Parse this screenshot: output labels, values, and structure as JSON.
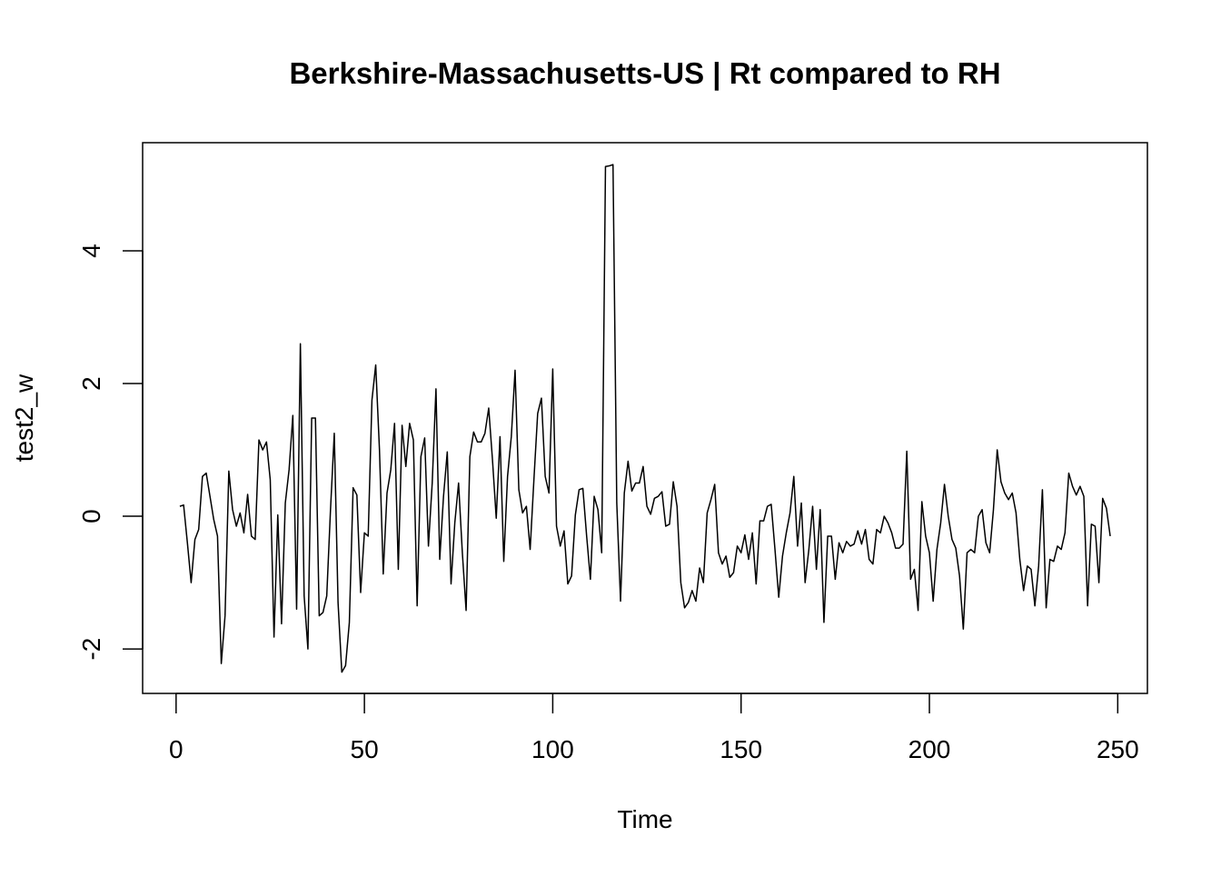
{
  "chart_data": {
    "type": "line",
    "title": "Berkshire-Massachusetts-US | Rt compared to RH",
    "x_label": "Time",
    "y_label": "test2_w",
    "x": [
      1,
      2,
      3,
      4,
      5,
      6,
      7,
      8,
      9,
      10,
      11,
      12,
      13,
      14,
      15,
      16,
      17,
      18,
      19,
      20,
      21,
      22,
      23,
      24,
      25,
      26,
      27,
      28,
      29,
      30,
      31,
      32,
      33,
      34,
      35,
      36,
      37,
      38,
      39,
      40,
      41,
      42,
      43,
      44,
      45,
      46,
      47,
      48,
      49,
      50,
      51,
      52,
      53,
      54,
      55,
      56,
      57,
      58,
      59,
      60,
      61,
      62,
      63,
      64,
      65,
      66,
      67,
      68,
      69,
      70,
      71,
      72,
      73,
      74,
      75,
      76,
      77,
      78,
      79,
      80,
      81,
      82,
      83,
      84,
      85,
      86,
      87,
      88,
      89,
      90,
      91,
      92,
      93,
      94,
      95,
      96,
      97,
      98,
      99,
      100,
      101,
      102,
      103,
      104,
      105,
      106,
      107,
      108,
      109,
      110,
      111,
      112,
      113,
      114,
      115,
      116,
      117,
      118,
      119,
      120,
      121,
      122,
      123,
      124,
      125,
      126,
      127,
      128,
      129,
      130,
      131,
      132,
      133,
      134,
      135,
      136,
      137,
      138,
      139,
      140,
      141,
      142,
      143,
      144,
      145,
      146,
      147,
      148,
      149,
      150,
      151,
      152,
      153,
      154,
      155,
      156,
      157,
      158,
      159,
      160,
      161,
      162,
      163,
      164,
      165,
      166,
      167,
      168,
      169,
      170,
      171,
      172,
      173,
      174,
      175,
      176,
      177,
      178,
      179,
      180,
      181,
      182,
      183,
      184,
      185,
      186,
      187,
      188,
      189,
      190,
      191,
      192,
      193,
      194,
      195,
      196,
      197,
      198,
      199,
      200,
      201,
      202,
      203,
      204,
      205,
      206,
      207,
      208,
      209,
      210,
      211,
      212,
      213,
      214,
      215,
      216,
      217,
      218,
      219,
      220,
      221,
      222,
      223,
      224,
      225,
      226,
      227,
      228,
      229,
      230,
      231,
      232,
      233,
      234,
      235,
      236,
      237,
      238,
      239,
      240,
      241,
      242,
      243,
      244,
      245,
      246,
      247,
      248
    ],
    "values": [
      0.15,
      0.17,
      -0.4,
      -1.0,
      -0.35,
      -0.2,
      0.6,
      0.65,
      0.3,
      -0.05,
      -0.3,
      -2.22,
      -1.5,
      0.68,
      0.1,
      -0.15,
      0.05,
      -0.25,
      0.33,
      -0.3,
      -0.35,
      1.15,
      1.0,
      1.12,
      0.55,
      -1.82,
      0.02,
      -1.62,
      0.2,
      0.7,
      1.52,
      -1.4,
      2.6,
      -1.2,
      -2.0,
      1.48,
      1.48,
      -1.5,
      -1.45,
      -1.2,
      0.1,
      1.25,
      -1.3,
      -2.35,
      -2.25,
      -1.6,
      0.43,
      0.32,
      -1.15,
      -0.25,
      -0.3,
      1.75,
      2.28,
      1.0,
      -0.87,
      0.35,
      0.7,
      1.4,
      -0.8,
      1.37,
      0.75,
      1.4,
      1.15,
      -1.35,
      0.9,
      1.18,
      -0.45,
      0.5,
      1.92,
      -0.65,
      0.3,
      0.97,
      -1.02,
      -0.1,
      0.5,
      -0.55,
      -1.42,
      0.9,
      1.27,
      1.12,
      1.12,
      1.25,
      1.63,
      0.85,
      -0.03,
      1.2,
      -0.68,
      0.6,
      1.2,
      2.2,
      0.4,
      0.05,
      0.15,
      -0.5,
      0.55,
      1.55,
      1.78,
      0.6,
      0.35,
      2.22,
      -0.15,
      -0.45,
      -0.22,
      -1.02,
      -0.9,
      0.02,
      0.4,
      0.42,
      -0.3,
      -0.95,
      0.3,
      0.1,
      -0.55,
      5.27,
      5.28,
      5.3,
      0.2,
      -1.28,
      0.35,
      0.83,
      0.38,
      0.5,
      0.5,
      0.75,
      0.15,
      0.03,
      0.27,
      0.3,
      0.37,
      -0.15,
      -0.12,
      0.52,
      0.15,
      -1.0,
      -1.38,
      -1.3,
      -1.12,
      -1.28,
      -0.78,
      -1.0,
      0.05,
      0.25,
      0.48,
      -0.55,
      -0.72,
      -0.6,
      -0.92,
      -0.85,
      -0.45,
      -0.55,
      -0.28,
      -0.65,
      -0.25,
      -1.02,
      -0.07,
      -0.07,
      0.15,
      0.18,
      -0.5,
      -1.22,
      -0.6,
      -0.25,
      0.05,
      0.6,
      -0.45,
      0.2,
      -1.0,
      -0.5,
      0.15,
      -0.8,
      0.1,
      -1.6,
      -0.3,
      -0.3,
      -0.95,
      -0.4,
      -0.55,
      -0.38,
      -0.45,
      -0.42,
      -0.22,
      -0.42,
      -0.2,
      -0.65,
      -0.72,
      -0.2,
      -0.25,
      0.0,
      -0.1,
      -0.25,
      -0.48,
      -0.48,
      -0.42,
      0.98,
      -0.95,
      -0.8,
      -1.42,
      0.22,
      -0.3,
      -0.55,
      -1.28,
      -0.5,
      -0.1,
      0.48,
      0.0,
      -0.35,
      -0.48,
      -0.9,
      -1.7,
      -0.55,
      -0.5,
      -0.55,
      0.0,
      0.1,
      -0.4,
      -0.55,
      0.1,
      1.0,
      0.52,
      0.35,
      0.25,
      0.35,
      0.05,
      -0.65,
      -1.12,
      -0.75,
      -0.8,
      -1.35,
      -0.75,
      0.4,
      -1.38,
      -0.65,
      -0.68,
      -0.45,
      -0.5,
      -0.25,
      0.65,
      0.45,
      0.32,
      0.45,
      0.3,
      -1.35,
      -0.12,
      -0.15,
      -1.0,
      0.27,
      0.12,
      -0.3
    ],
    "color": "#000000",
    "xlim": [
      -8.88,
      257.88
    ],
    "ylim": [
      -2.67,
      5.63
    ],
    "xticks": [
      0,
      50,
      100,
      150,
      200,
      250
    ],
    "yticks": [
      -2,
      0,
      2,
      4
    ]
  }
}
